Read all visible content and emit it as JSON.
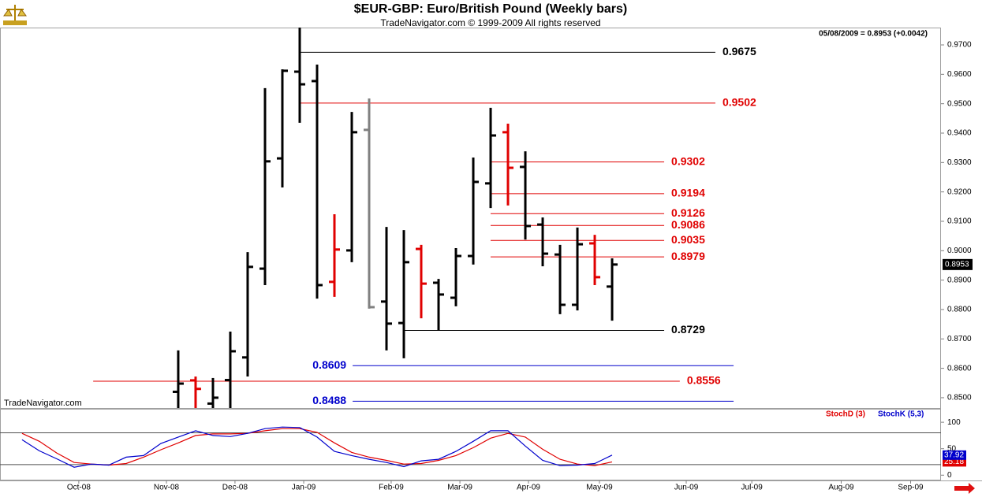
{
  "chart_data": [
    {
      "type": "ohlc",
      "title": "$EUR-GBP:  Euro/British Pound  (Weekly bars)",
      "subtitle": "TradeNavigator.com © 1999-2009 All rights reserved",
      "annotations": [
        "05/08/2009 = 0.8953 (+0.0042)",
        "TradeNavigator.com"
      ],
      "x": [
        0,
        1,
        2,
        3,
        4,
        5,
        6,
        7,
        8,
        9,
        10,
        11,
        12,
        13,
        14,
        15,
        16,
        17,
        18,
        19,
        20,
        21,
        22,
        23,
        24,
        25
      ],
      "open": [
        0.852,
        0.8559,
        0.848,
        0.856,
        0.8637,
        0.8939,
        0.9314,
        0.9609,
        0.9577,
        0.8894,
        0.9001,
        0.9411,
        0.8827,
        0.8754,
        0.9006,
        0.8891,
        0.884,
        0.8982,
        0.9229,
        0.9403,
        0.9285,
        0.9089,
        0.8987,
        0.8816,
        0.9025,
        0.8878
      ],
      "high": [
        0.8661,
        0.8572,
        0.8567,
        0.8725,
        0.8995,
        0.9553,
        0.9617,
        0.979,
        0.9633,
        0.9124,
        0.9472,
        0.9518,
        0.9081,
        0.907,
        0.902,
        0.8904,
        0.9009,
        0.9317,
        0.9486,
        0.9432,
        0.9338,
        0.9113,
        0.902,
        0.9079,
        0.9054,
        0.8974
      ],
      "low": [
        0.843,
        0.8406,
        0.8406,
        0.845,
        0.8572,
        0.8883,
        0.9215,
        0.9435,
        0.8837,
        0.8843,
        0.8961,
        0.8803,
        0.8661,
        0.8634,
        0.877,
        0.8728,
        0.8811,
        0.8953,
        0.9145,
        0.9154,
        0.9038,
        0.8947,
        0.8784,
        0.8797,
        0.8883,
        0.8762
      ],
      "close": [
        0.8548,
        0.853,
        0.85,
        0.8658,
        0.8945,
        0.9304,
        0.9612,
        0.9566,
        0.8883,
        0.9004,
        0.9403,
        0.8808,
        0.8752,
        0.8961,
        0.8888,
        0.8851,
        0.8982,
        0.9234,
        0.9392,
        0.9282,
        0.9084,
        0.899,
        0.8816,
        0.9022,
        0.891,
        0.8953
      ],
      "bar_colors": [
        "#000000",
        "#e00000",
        "#000000",
        "#000000",
        "#000000",
        "#000000",
        "#000000",
        "#000000",
        "#000000",
        "#e00000",
        "#000000",
        "#808080",
        "#000000",
        "#000000",
        "#e00000",
        "#000000",
        "#000000",
        "#000000",
        "#000000",
        "#e00000",
        "#000000",
        "#000000",
        "#000000",
        "#000000",
        "#e00000",
        "#000000"
      ],
      "levels": [
        {
          "value": 0.9675,
          "color": "#000000",
          "from": 7,
          "to": 30.95,
          "label_side": "right"
        },
        {
          "value": 0.9502,
          "color": "#e00000",
          "from": 7,
          "to": 30.95,
          "label_side": "right"
        },
        {
          "value": 0.9302,
          "color": "#e00000",
          "from": 18,
          "to": 28,
          "label_side": "right"
        },
        {
          "value": 0.9194,
          "color": "#e00000",
          "from": 18,
          "to": 28,
          "label_side": "right"
        },
        {
          "value": 0.9126,
          "color": "#e00000",
          "from": 18,
          "to": 28,
          "label_side": "right"
        },
        {
          "value": 0.9086,
          "color": "#e00000",
          "from": 18,
          "to": 28,
          "label_side": "right"
        },
        {
          "value": 0.9035,
          "color": "#e00000",
          "from": 18,
          "to": 28,
          "label_side": "right"
        },
        {
          "value": 0.8979,
          "color": "#e00000",
          "from": 18,
          "to": 28,
          "label_side": "right"
        },
        {
          "value": 0.8729,
          "color": "#000000",
          "from": 13,
          "to": 28,
          "label_side": "right"
        },
        {
          "value": 0.8609,
          "color": "#0000cc",
          "from": 10.05,
          "to": 32,
          "label_side": "left"
        },
        {
          "value": 0.8556,
          "color": "#e00000",
          "from": -4.9,
          "to": 28.9,
          "label_side": "right"
        },
        {
          "value": 0.8488,
          "color": "#0000cc",
          "from": 10.05,
          "to": 32,
          "label_side": "left"
        }
      ],
      "xlim": [
        -10.27,
        43.95
      ],
      "ylim": [
        0.8465,
        0.9759
      ],
      "yticks": [
        {
          "value": 0.85,
          "label": "0.8500"
        },
        {
          "value": 0.86,
          "label": "0.8600"
        },
        {
          "value": 0.87,
          "label": "0.8700"
        },
        {
          "value": 0.88,
          "label": "0.8800"
        },
        {
          "value": 0.89,
          "label": "0.8900"
        },
        {
          "value": 0.9,
          "label": "0.9000"
        },
        {
          "value": 0.91,
          "label": "0.9100"
        },
        {
          "value": 0.92,
          "label": "0.9200"
        },
        {
          "value": 0.93,
          "label": "0.9300"
        },
        {
          "value": 0.94,
          "label": "0.9400"
        },
        {
          "value": 0.95,
          "label": "0.9500"
        },
        {
          "value": 0.96,
          "label": "0.9600"
        },
        {
          "value": 0.97,
          "label": "0.9700"
        }
      ]
    },
    {
      "type": "line",
      "x": [
        -9,
        -8,
        -7,
        -6,
        -5,
        -4,
        -3,
        -2,
        -1,
        0,
        1,
        2,
        3,
        4,
        5,
        6,
        7,
        8,
        9,
        10,
        11,
        12,
        13,
        14,
        15,
        16,
        17,
        18,
        19,
        20,
        21,
        22,
        23,
        24,
        25
      ],
      "series": [
        {
          "name": "StochD (3)",
          "color": "#e00000",
          "values": [
            79,
            64,
            42,
            24,
            21,
            19,
            22,
            34,
            48,
            61,
            75,
            78,
            78,
            79,
            84,
            88,
            88,
            81,
            61,
            43,
            34,
            28,
            21,
            22,
            28,
            37,
            52,
            70,
            79,
            72,
            49,
            30,
            21,
            18,
            25.18
          ]
        },
        {
          "name": "StochK (5,3)",
          "color": "#0000cc",
          "values": [
            67,
            46,
            31,
            15,
            21,
            19,
            34,
            37,
            60,
            72,
            84,
            75,
            73,
            79,
            88,
            91,
            90,
            72,
            45,
            37,
            30,
            24,
            16,
            27,
            30,
            45,
            64,
            84,
            84,
            55,
            28,
            18,
            19,
            22,
            37.92
          ]
        }
      ],
      "levels": [
        80,
        20
      ],
      "xlim": [
        -10.27,
        43.95
      ],
      "ylim": [
        -10,
        124
      ],
      "yticks": [
        0,
        50,
        100
      ],
      "xticks": [
        {
          "value": -5.73,
          "label": "Oct-08"
        },
        {
          "value": -0.68,
          "label": "Nov-08"
        },
        {
          "value": 3.27,
          "label": "Dec-08"
        },
        {
          "value": 7.23,
          "label": "Jan-09"
        },
        {
          "value": 12.27,
          "label": "Feb-09"
        },
        {
          "value": 16.23,
          "label": "Mar-09"
        },
        {
          "value": 20.18,
          "label": "Apr-09"
        },
        {
          "value": 24.27,
          "label": "May-09"
        },
        {
          "value": 29.27,
          "label": "Jun-09"
        },
        {
          "value": 33.05,
          "label": "Jul-09"
        },
        {
          "value": 38.2,
          "label": "Aug-09"
        },
        {
          "value": 42.2,
          "label": "Sep-09"
        }
      ]
    }
  ]
}
